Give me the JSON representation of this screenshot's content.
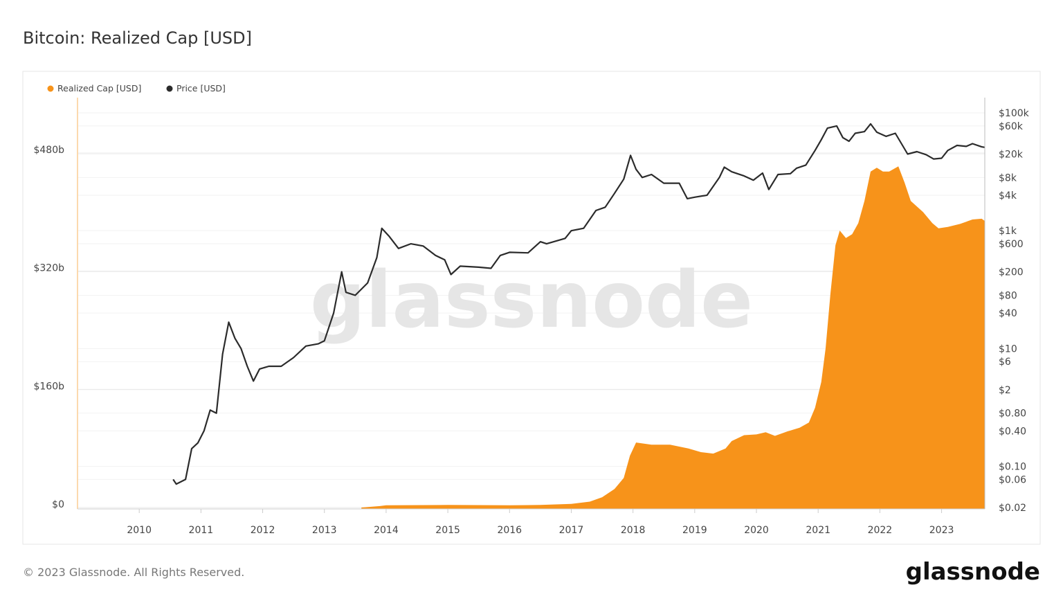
{
  "title": "Bitcoin: Realized Cap [USD]",
  "footer": {
    "copyright": "© 2023 Glassnode. All Rights Reserved.",
    "logo": "glassnode"
  },
  "watermark": "glassnode",
  "chart_data": {
    "type": "area+line",
    "title": "Bitcoin: Realized Cap [USD]",
    "legend": {
      "placement": "top-left",
      "entries": [
        {
          "name": "Realized Cap [USD]",
          "color": "#f7931a"
        },
        {
          "name": "Price [USD]",
          "color": "#2b2b2b"
        }
      ]
    },
    "x_axis": {
      "range": [
        2009.0,
        2023.7
      ],
      "ticks": [
        "2010",
        "2011",
        "2012",
        "2013",
        "2014",
        "2015",
        "2016",
        "2017",
        "2018",
        "2019",
        "2020",
        "2021",
        "2022",
        "2023"
      ]
    },
    "y_left": {
      "label": "",
      "range": [
        0,
        560
      ],
      "unit": "billion USD",
      "ticks": [
        0,
        160,
        320,
        480
      ],
      "tick_labels": [
        "$0",
        "$160b",
        "$320b",
        "$480b"
      ]
    },
    "y_right": {
      "scale": "log",
      "range": [
        0.02,
        100000
      ],
      "ticks": [
        100000,
        60000,
        20000,
        8000,
        4000,
        1000,
        600,
        200,
        80,
        40,
        10,
        6,
        2,
        0.8,
        0.4,
        0.1,
        0.06,
        0.02
      ],
      "tick_labels": [
        "$100k",
        "$60k",
        "$20k",
        "$8k",
        "$4k",
        "$1k",
        "$600",
        "$200",
        "$80",
        "$40",
        "$10",
        "$6",
        "$2",
        "$0.80",
        "$0.40",
        "$0.10",
        "$0.06",
        "$0.02"
      ]
    },
    "grid": true,
    "series": [
      {
        "name": "Realized Cap [USD]",
        "type": "area",
        "axis": "left",
        "color": "#f7931a",
        "points": [
          [
            2013.6,
            0
          ],
          [
            2013.9,
            2
          ],
          [
            2014.0,
            3
          ],
          [
            2015.0,
            3.5
          ],
          [
            2016.0,
            3
          ],
          [
            2016.5,
            3.5
          ],
          [
            2017.0,
            5
          ],
          [
            2017.3,
            8
          ],
          [
            2017.5,
            14
          ],
          [
            2017.7,
            25
          ],
          [
            2017.85,
            40
          ],
          [
            2017.95,
            70
          ],
          [
            2018.05,
            88
          ],
          [
            2018.3,
            85
          ],
          [
            2018.6,
            85
          ],
          [
            2018.9,
            80
          ],
          [
            2019.1,
            75
          ],
          [
            2019.3,
            73
          ],
          [
            2019.5,
            80
          ],
          [
            2019.6,
            90
          ],
          [
            2019.8,
            98
          ],
          [
            2020.0,
            99
          ],
          [
            2020.15,
            102
          ],
          [
            2020.3,
            97
          ],
          [
            2020.5,
            103
          ],
          [
            2020.7,
            108
          ],
          [
            2020.85,
            115
          ],
          [
            2020.95,
            135
          ],
          [
            2021.05,
            170
          ],
          [
            2021.12,
            215
          ],
          [
            2021.2,
            290
          ],
          [
            2021.28,
            355
          ],
          [
            2021.35,
            375
          ],
          [
            2021.45,
            365
          ],
          [
            2021.55,
            370
          ],
          [
            2021.65,
            385
          ],
          [
            2021.75,
            415
          ],
          [
            2021.85,
            455
          ],
          [
            2021.95,
            460
          ],
          [
            2022.05,
            455
          ],
          [
            2022.15,
            455
          ],
          [
            2022.3,
            462
          ],
          [
            2022.4,
            440
          ],
          [
            2022.5,
            415
          ],
          [
            2022.7,
            400
          ],
          [
            2022.85,
            385
          ],
          [
            2022.95,
            378
          ],
          [
            2023.1,
            380
          ],
          [
            2023.3,
            384
          ],
          [
            2023.5,
            390
          ],
          [
            2023.65,
            391
          ],
          [
            2023.7,
            388
          ]
        ]
      },
      {
        "name": "Price [USD]",
        "type": "line",
        "axis": "right",
        "color": "#2b2b2b",
        "points": [
          [
            2010.55,
            0.06
          ],
          [
            2010.6,
            0.05
          ],
          [
            2010.75,
            0.06
          ],
          [
            2010.85,
            0.2
          ],
          [
            2010.95,
            0.25
          ],
          [
            2011.05,
            0.4
          ],
          [
            2011.15,
            0.9
          ],
          [
            2011.25,
            0.8
          ],
          [
            2011.35,
            8
          ],
          [
            2011.45,
            28
          ],
          [
            2011.55,
            15
          ],
          [
            2011.65,
            10
          ],
          [
            2011.75,
            5
          ],
          [
            2011.85,
            2.8
          ],
          [
            2011.95,
            4.5
          ],
          [
            2012.1,
            5
          ],
          [
            2012.3,
            5
          ],
          [
            2012.5,
            7
          ],
          [
            2012.7,
            11
          ],
          [
            2012.9,
            12
          ],
          [
            2013.0,
            13.5
          ],
          [
            2013.15,
            40
          ],
          [
            2013.28,
            200
          ],
          [
            2013.35,
            90
          ],
          [
            2013.5,
            80
          ],
          [
            2013.7,
            130
          ],
          [
            2013.85,
            350
          ],
          [
            2013.93,
            1100
          ],
          [
            2014.05,
            800
          ],
          [
            2014.2,
            500
          ],
          [
            2014.4,
            600
          ],
          [
            2014.6,
            550
          ],
          [
            2014.8,
            380
          ],
          [
            2014.95,
            320
          ],
          [
            2015.05,
            180
          ],
          [
            2015.2,
            250
          ],
          [
            2015.5,
            240
          ],
          [
            2015.7,
            230
          ],
          [
            2015.85,
            380
          ],
          [
            2016.0,
            430
          ],
          [
            2016.3,
            420
          ],
          [
            2016.5,
            650
          ],
          [
            2016.6,
            600
          ],
          [
            2016.9,
            740
          ],
          [
            2017.0,
            1000
          ],
          [
            2017.2,
            1100
          ],
          [
            2017.4,
            2200
          ],
          [
            2017.55,
            2500
          ],
          [
            2017.7,
            4300
          ],
          [
            2017.85,
            7500
          ],
          [
            2017.96,
            19000
          ],
          [
            2018.05,
            11000
          ],
          [
            2018.15,
            8000
          ],
          [
            2018.3,
            9000
          ],
          [
            2018.5,
            6400
          ],
          [
            2018.75,
            6400
          ],
          [
            2018.88,
            3500
          ],
          [
            2019.0,
            3700
          ],
          [
            2019.2,
            4000
          ],
          [
            2019.4,
            8000
          ],
          [
            2019.48,
            12000
          ],
          [
            2019.6,
            10000
          ],
          [
            2019.8,
            8500
          ],
          [
            2019.95,
            7200
          ],
          [
            2020.1,
            9500
          ],
          [
            2020.2,
            5000
          ],
          [
            2020.35,
            9000
          ],
          [
            2020.55,
            9300
          ],
          [
            2020.65,
            11500
          ],
          [
            2020.8,
            13000
          ],
          [
            2020.95,
            23000
          ],
          [
            2021.05,
            35000
          ],
          [
            2021.15,
            55000
          ],
          [
            2021.3,
            60000
          ],
          [
            2021.4,
            38000
          ],
          [
            2021.5,
            33000
          ],
          [
            2021.6,
            45000
          ],
          [
            2021.75,
            48000
          ],
          [
            2021.85,
            65000
          ],
          [
            2021.95,
            47000
          ],
          [
            2022.1,
            40000
          ],
          [
            2022.25,
            45000
          ],
          [
            2022.35,
            30000
          ],
          [
            2022.45,
            20000
          ],
          [
            2022.6,
            22000
          ],
          [
            2022.75,
            19500
          ],
          [
            2022.87,
            16500
          ],
          [
            2023.0,
            17000
          ],
          [
            2023.1,
            23000
          ],
          [
            2023.25,
            28000
          ],
          [
            2023.4,
            27000
          ],
          [
            2023.5,
            30000
          ],
          [
            2023.65,
            26500
          ],
          [
            2023.7,
            26000
          ]
        ]
      }
    ]
  }
}
